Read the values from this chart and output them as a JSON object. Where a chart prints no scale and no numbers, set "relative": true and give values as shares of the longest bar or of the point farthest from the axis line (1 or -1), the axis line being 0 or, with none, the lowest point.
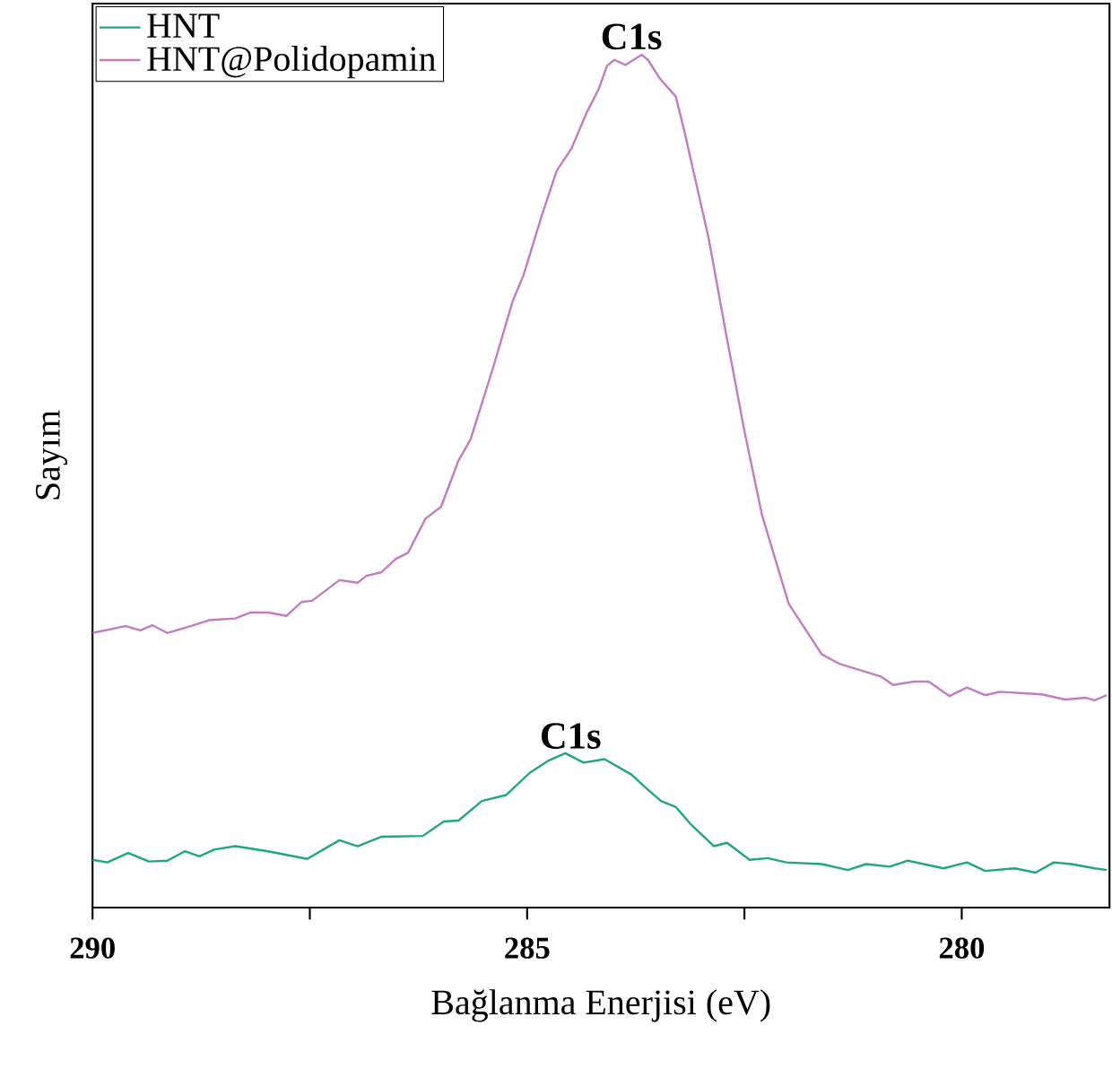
{
  "chart_data": {
    "type": "line",
    "xlabel": "Bağlanma Enerjisi (eV)",
    "ylabel": "Sayım",
    "relative": true,
    "xlim": [
      290,
      278.3
    ],
    "xticks": [
      290,
      {
        "value": 287.5,
        "label": null
      },
      285,
      {
        "value": 282.5,
        "label": null
      },
      280
    ],
    "legend": "top left",
    "grid": false,
    "annotations": [
      {
        "text": "C1s",
        "x": 283.8,
        "y": 1.0
      },
      {
        "text": "C1s",
        "x": 284.5,
        "y": 0.18
      }
    ],
    "series": [
      {
        "name": "HNT",
        "color": "#1fa97b",
        "x": [
          290,
          289.83,
          289.59,
          289.35,
          289.14,
          288.94,
          288.77,
          288.6,
          288.36,
          287.98,
          287.53,
          287.16,
          286.95,
          286.68,
          286.2,
          285.96,
          285.79,
          285.52,
          285.24,
          284.97,
          284.76,
          284.56,
          284.35,
          284.11,
          283.8,
          283.63,
          283.46,
          283.29,
          283.12,
          282.85,
          282.7,
          282.44,
          282.23,
          282.02,
          281.61,
          281.31,
          281.1,
          280.83,
          280.62,
          280.21,
          279.94,
          279.73,
          279.39,
          279.15,
          278.94,
          278.74,
          278.47,
          278.33
        ],
        "values": [
          0.056,
          0.053,
          0.064,
          0.054,
          0.055,
          0.066,
          0.06,
          0.068,
          0.072,
          0.066,
          0.057,
          0.079,
          0.072,
          0.083,
          0.084,
          0.101,
          0.102,
          0.125,
          0.132,
          0.158,
          0.172,
          0.181,
          0.17,
          0.174,
          0.156,
          0.14,
          0.125,
          0.118,
          0.098,
          0.072,
          0.076,
          0.056,
          0.058,
          0.053,
          0.051,
          0.044,
          0.051,
          0.048,
          0.055,
          0.046,
          0.053,
          0.043,
          0.046,
          0.041,
          0.053,
          0.051,
          0.046,
          0.044
        ]
      },
      {
        "name": "HNT@Polidopamin",
        "color": "#c47cc0",
        "x": [
          290,
          289.62,
          289.45,
          289.31,
          289.14,
          288.87,
          288.66,
          288.36,
          288.18,
          287.98,
          287.77,
          287.6,
          287.47,
          287.16,
          286.95,
          286.85,
          286.68,
          286.51,
          286.37,
          286.17,
          285.99,
          285.79,
          285.65,
          285.38,
          285.17,
          285.04,
          284.83,
          284.66,
          284.49,
          284.32,
          284.18,
          284.08,
          283.996,
          283.87,
          283.68,
          283.61,
          283.48,
          283.29,
          283.19,
          282.91,
          282.71,
          282.5,
          282.3,
          281.99,
          281.61,
          281.41,
          280.93,
          280.79,
          280.55,
          280.38,
          280.14,
          279.94,
          279.73,
          279.56,
          279.08,
          278.81,
          278.57,
          278.47,
          278.33
        ],
        "values": [
          0.322,
          0.33,
          0.325,
          0.331,
          0.322,
          0.33,
          0.337,
          0.339,
          0.346,
          0.346,
          0.342,
          0.358,
          0.36,
          0.384,
          0.381,
          0.389,
          0.393,
          0.409,
          0.416,
          0.456,
          0.47,
          0.524,
          0.549,
          0.637,
          0.71,
          0.742,
          0.812,
          0.864,
          0.89,
          0.931,
          0.959,
          0.987,
          0.994,
          0.988,
          1.0,
          0.994,
          0.973,
          0.951,
          0.91,
          0.784,
          0.672,
          0.559,
          0.461,
          0.356,
          0.297,
          0.286,
          0.271,
          0.261,
          0.265,
          0.265,
          0.248,
          0.258,
          0.249,
          0.253,
          0.25,
          0.244,
          0.246,
          0.243,
          0.249
        ]
      }
    ]
  }
}
